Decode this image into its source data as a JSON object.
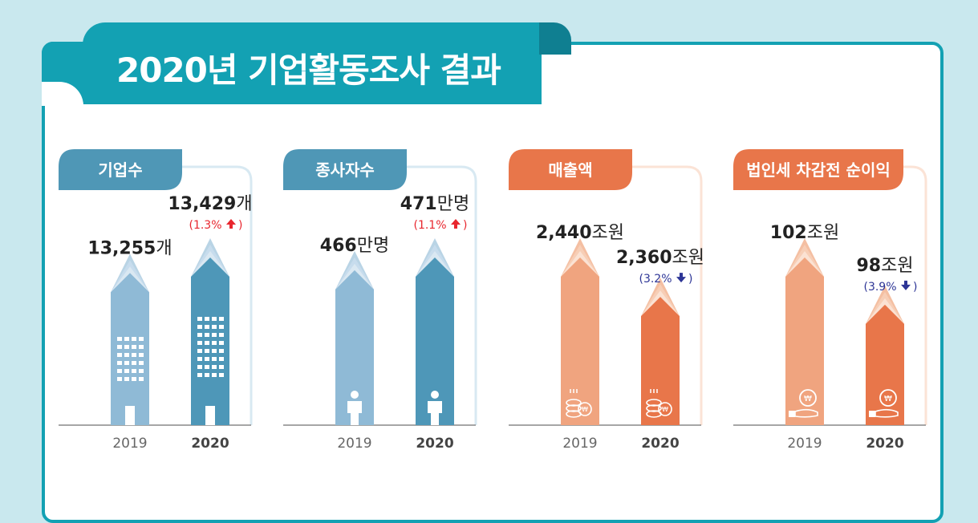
{
  "title": "2020년 기업활동조사 결과",
  "colors": {
    "teal": "#13a1b3",
    "blue_header": "#4f97b6",
    "orange_header": "#e8764a",
    "up": "#e8262e",
    "down": "#2d3596"
  },
  "chart_data": [
    {
      "type": "bar",
      "title": "기업수",
      "categories": [
        "2019",
        "2020"
      ],
      "values": [
        13255,
        13429
      ],
      "value_labels": [
        "13,255개",
        "13,429개"
      ],
      "change_label": "(1.3%",
      "change_direction": "up",
      "theme": "blue",
      "icon": "building-icon"
    },
    {
      "type": "bar",
      "title": "종사자수",
      "categories": [
        "2019",
        "2020"
      ],
      "values": [
        466,
        471
      ],
      "value_labels": [
        "466만명",
        "471만명"
      ],
      "change_label": "(1.1%",
      "change_direction": "up",
      "theme": "blue",
      "icon": "person-icon"
    },
    {
      "type": "bar",
      "title": "매출액",
      "categories": [
        "2019",
        "2020"
      ],
      "values": [
        2440,
        2360
      ],
      "value_labels": [
        "2,440조원",
        "2,360조원"
      ],
      "change_label": "(3.2%",
      "change_direction": "down",
      "theme": "orange",
      "icon": "coins-icon"
    },
    {
      "type": "bar",
      "title": "법인세 차감전 순이익",
      "categories": [
        "2019",
        "2020"
      ],
      "values": [
        102,
        98
      ],
      "value_labels": [
        "102조원",
        "98조원"
      ],
      "change_label": "(3.9%",
      "change_direction": "down",
      "theme": "orange",
      "icon": "coin-hand-icon"
    }
  ]
}
